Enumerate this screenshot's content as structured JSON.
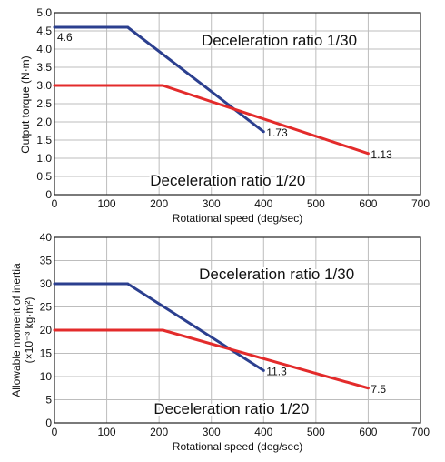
{
  "chart_data": [
    {
      "type": "line",
      "xlabel": "Rotational speed (deg/sec)",
      "ylabel": "Output torque (N·m)",
      "xlim": [
        0,
        700
      ],
      "ylim": [
        0,
        5.0
      ],
      "xticks": [
        0,
        100,
        200,
        300,
        400,
        500,
        600,
        700
      ],
      "yticks": [
        "0",
        "0.5",
        "1.0",
        "1.5",
        "2.0",
        "2.5",
        "3.0",
        "3.5",
        "4.0",
        "4.5",
        "5.0"
      ],
      "grid": true,
      "series": [
        {
          "color": "#2b3f8f",
          "x": [
            0,
            140,
            400
          ],
          "y": [
            4.6,
            4.6,
            1.73
          ],
          "start_label": "4.6",
          "end_label": "1.73"
        },
        {
          "color": "#e32b2b",
          "x": [
            0,
            207,
            600
          ],
          "y": [
            3.0,
            3.0,
            1.13
          ],
          "end_label": "1.13"
        }
      ],
      "annotations": [
        {
          "text": "Deceleration ratio 1/30",
          "at": [
            430,
            4.1
          ]
        },
        {
          "text": "Deceleration ratio 1/20",
          "at": [
            480,
            0.25
          ]
        }
      ]
    },
    {
      "type": "line",
      "xlabel": "Rotational speed (deg/sec)",
      "ylabel": "Allowable moment of inertia (×10⁻³ kg·m²)",
      "xlim": [
        0,
        700
      ],
      "ylim": [
        0,
        40
      ],
      "xticks": [
        0,
        100,
        200,
        300,
        400,
        500,
        600,
        700
      ],
      "yticks": [
        "0",
        "5",
        "10",
        "15",
        "20",
        "25",
        "30",
        "35",
        "40"
      ],
      "grid": true,
      "series": [
        {
          "color": "#2b3f8f",
          "x": [
            0,
            140,
            400
          ],
          "y": [
            30,
            30,
            11.3
          ],
          "end_label": "11.3"
        },
        {
          "color": "#e32b2b",
          "x": [
            0,
            207,
            600
          ],
          "y": [
            20,
            20,
            7.5
          ],
          "end_label": "7.5"
        }
      ],
      "annotations": [
        {
          "text": "Deceleration ratio 1/30",
          "at": [
            425,
            31
          ]
        },
        {
          "text": "Deceleration ratio 1/20",
          "at": [
            487,
            2
          ]
        }
      ]
    }
  ]
}
